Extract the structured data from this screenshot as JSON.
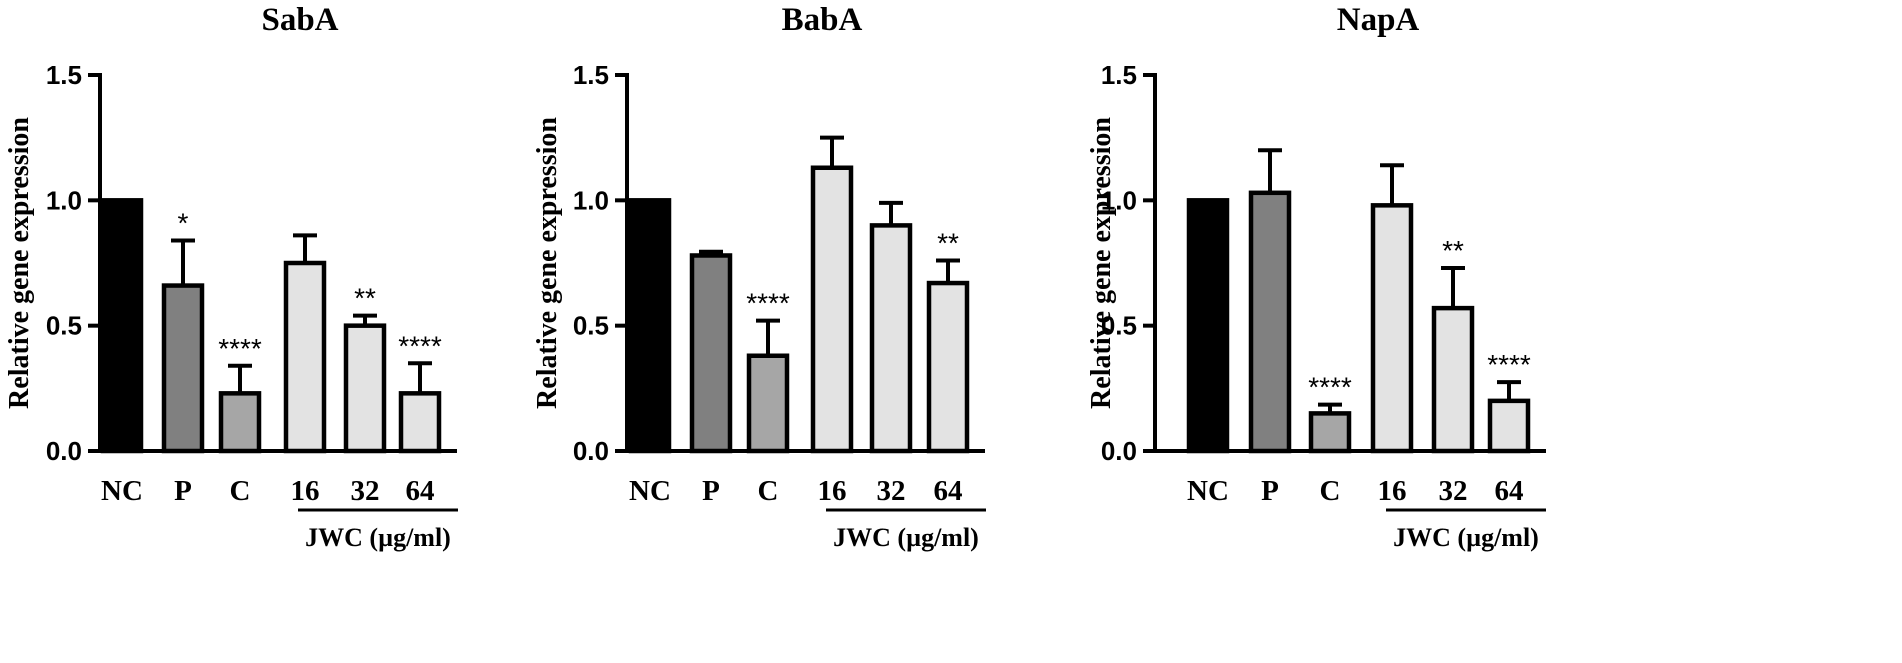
{
  "chart_data": [
    {
      "type": "bar",
      "title": "SabA",
      "ylabel": "Relative gene expression",
      "xlabel": "",
      "ylim": [
        0,
        1.5
      ],
      "yticks": [
        "0.0",
        "0.5",
        "1.0",
        "1.5"
      ],
      "categories": [
        "NC",
        "P",
        "C",
        "16",
        "32",
        "64"
      ],
      "values": [
        1.0,
        0.66,
        0.23,
        0.75,
        0.5,
        0.23
      ],
      "errors": [
        0,
        0.18,
        0.11,
        0.11,
        0.04,
        0.12
      ],
      "significance": [
        "",
        "*",
        "****",
        "",
        "**",
        "****"
      ],
      "bar_colors": [
        "#000000",
        "#808080",
        "#a6a6a6",
        "#e3e3e3",
        "#e3e3e3",
        "#e3e3e3"
      ],
      "group_label": "JWC (µg/ml)",
      "grid": false
    },
    {
      "type": "bar",
      "title": "BabA",
      "ylabel": "Relative gene expression",
      "xlabel": "",
      "ylim": [
        0,
        1.5
      ],
      "yticks": [
        "0.0",
        "0.5",
        "1.0",
        "1.5"
      ],
      "categories": [
        "NC",
        "P",
        "C",
        "16",
        "32",
        "64"
      ],
      "values": [
        1.0,
        0.78,
        0.38,
        1.13,
        0.9,
        0.67
      ],
      "errors": [
        0,
        0.015,
        0.14,
        0.12,
        0.09,
        0.09
      ],
      "significance": [
        "",
        "",
        "****",
        "",
        "",
        "**"
      ],
      "bar_colors": [
        "#000000",
        "#808080",
        "#a6a6a6",
        "#e3e3e3",
        "#e3e3e3",
        "#e3e3e3"
      ],
      "group_label": "JWC (µg/ml)",
      "grid": false
    },
    {
      "type": "bar",
      "title": "NapA",
      "ylabel": "Relative gene expression",
      "xlabel": "",
      "ylim": [
        0,
        1.5
      ],
      "yticks": [
        "0.0",
        "0.5",
        "1.0",
        "1.5"
      ],
      "categories": [
        "NC",
        "P",
        "C",
        "16",
        "32",
        "64"
      ],
      "values": [
        1.0,
        1.03,
        0.15,
        0.98,
        0.57,
        0.2
      ],
      "errors": [
        0,
        0.17,
        0.035,
        0.16,
        0.16,
        0.075
      ],
      "significance": [
        "",
        "",
        "****",
        "",
        "**",
        "****"
      ],
      "bar_colors": [
        "#000000",
        "#808080",
        "#a6a6a6",
        "#e3e3e3",
        "#e3e3e3",
        "#e3e3e3"
      ],
      "group_label": "JWC (µg/ml)",
      "grid": false
    }
  ]
}
